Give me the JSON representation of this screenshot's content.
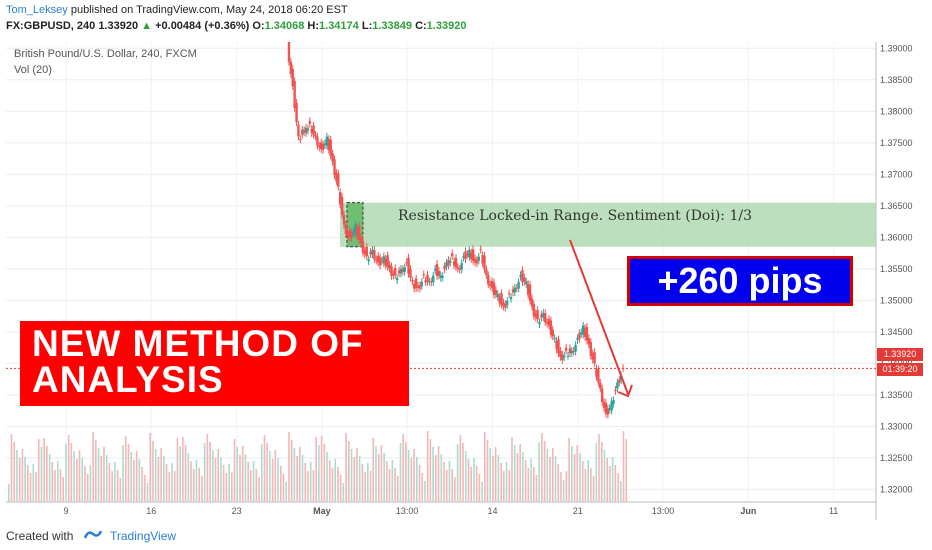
{
  "header": {
    "author": "Tom_Leksey",
    "published": "published on TradingView.com, May 24, 2018 06:20 EST",
    "symbol": "FX:GBPUSD, 240",
    "last": "1.33920",
    "change_arrow": "▲",
    "change": "+0.00484 (+0.36%)",
    "o_label": "O:",
    "o_value": "1.34068",
    "h_label": "H:",
    "h_value": "1.34174",
    "l_label": "L:",
    "l_value": "1.33849",
    "c_label": "C:",
    "c_value": "1.33920"
  },
  "legend": {
    "title": "British Pound/U.S. Dollar, 240, FXCM",
    "vol": "Vol (20)"
  },
  "annotations": {
    "banner_line1": "NEW METHOD OF",
    "banner_line2": "ANALYSIS",
    "pips": "+260 pips",
    "zone": "Resistance Locked-in Range. Sentiment (Doi): 1/3"
  },
  "price_tags": {
    "last": "1.33920",
    "countdown": "01:39:20"
  },
  "footer": {
    "created_with": "Created with",
    "brand": "TradingView"
  },
  "colors": {
    "up": "#26a69a",
    "down": "#ef5350",
    "zone": "#a5d6a7",
    "banner": "#ff0000",
    "pips_bg": "#0000ee",
    "arrow": "#e53935"
  },
  "chart_data": {
    "type": "candlestick",
    "y_axis": {
      "ticks": [
        "1.39000",
        "1.38500",
        "1.38000",
        "1.37500",
        "1.37000",
        "1.36500",
        "1.36000",
        "1.35500",
        "1.35000",
        "1.34500",
        "1.34000",
        "1.33500",
        "1.33000",
        "1.32500",
        "1.32000"
      ],
      "ylim": [
        1.318,
        1.391
      ]
    },
    "x_axis": {
      "ticks": [
        "9",
        "16",
        "23",
        "May",
        "13:00",
        "14",
        "21",
        "13:00",
        "Jun",
        "11"
      ]
    },
    "resistance_zone": [
      1.3585,
      1.3655
    ],
    "last_price": 1.3392,
    "close_path": [
      [
        0,
        1.391
      ],
      [
        2,
        1.384
      ],
      [
        4,
        1.376
      ],
      [
        6,
        1.377
      ],
      [
        8,
        1.378
      ],
      [
        10,
        1.376
      ],
      [
        12,
        1.374
      ],
      [
        14,
        1.376
      ],
      [
        16,
        1.372
      ],
      [
        18,
        1.368
      ],
      [
        20,
        1.362
      ],
      [
        22,
        1.36
      ],
      [
        24,
        1.362
      ],
      [
        26,
        1.359
      ],
      [
        28,
        1.357
      ],
      [
        30,
        1.358
      ],
      [
        32,
        1.356
      ],
      [
        34,
        1.357
      ],
      [
        36,
        1.355
      ],
      [
        38,
        1.354
      ],
      [
        40,
        1.355
      ],
      [
        42,
        1.356
      ],
      [
        44,
        1.353
      ],
      [
        46,
        1.352
      ],
      [
        48,
        1.354
      ],
      [
        50,
        1.353
      ],
      [
        52,
        1.355
      ],
      [
        54,
        1.354
      ],
      [
        56,
        1.356
      ],
      [
        58,
        1.357
      ],
      [
        60,
        1.355
      ],
      [
        62,
        1.357
      ],
      [
        64,
        1.358
      ],
      [
        66,
        1.356
      ],
      [
        68,
        1.358
      ],
      [
        70,
        1.354
      ],
      [
        72,
        1.352
      ],
      [
        74,
        1.351
      ],
      [
        76,
        1.349
      ],
      [
        78,
        1.351
      ],
      [
        80,
        1.352
      ],
      [
        82,
        1.354
      ],
      [
        84,
        1.353
      ],
      [
        86,
        1.349
      ],
      [
        88,
        1.347
      ],
      [
        90,
        1.348
      ],
      [
        92,
        1.346
      ],
      [
        94,
        1.344
      ],
      [
        96,
        1.341
      ],
      [
        98,
        1.342
      ],
      [
        100,
        1.342
      ],
      [
        102,
        1.344
      ],
      [
        104,
        1.346
      ],
      [
        106,
        1.343
      ],
      [
        108,
        1.34
      ],
      [
        110,
        1.336
      ],
      [
        112,
        1.332
      ],
      [
        114,
        1.334
      ],
      [
        116,
        1.337
      ],
      [
        118,
        1.3392
      ]
    ]
  }
}
